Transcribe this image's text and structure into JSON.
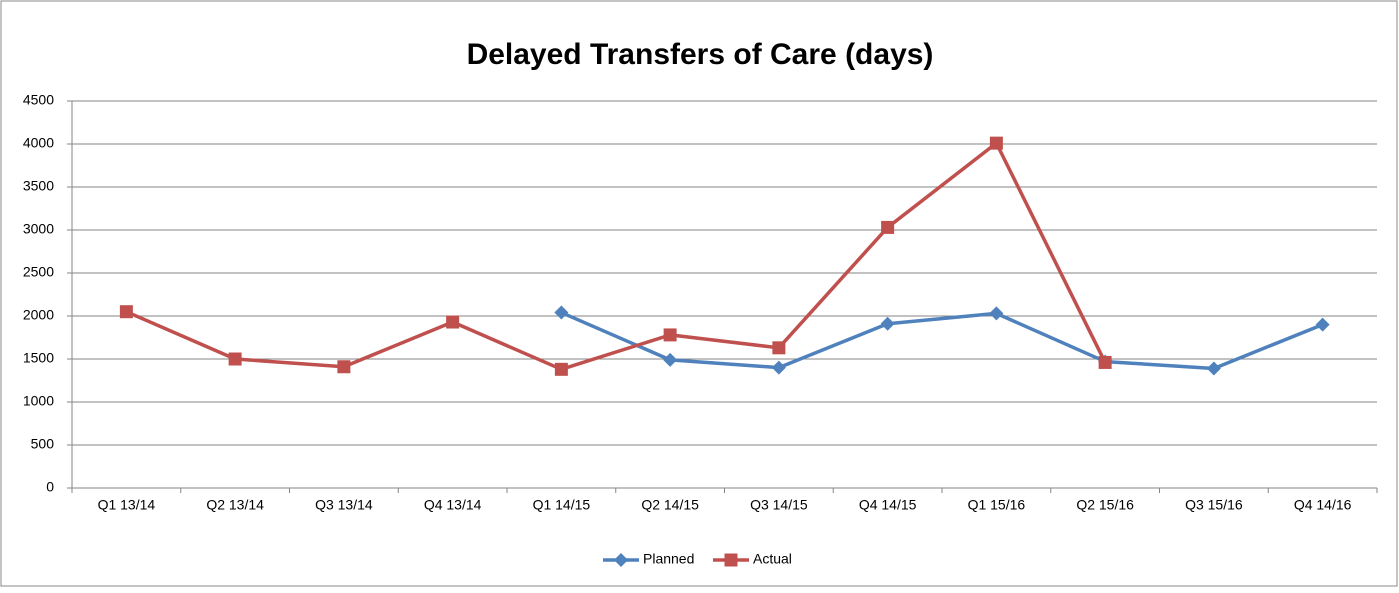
{
  "chart_data": {
    "type": "line",
    "title": "Delayed Transfers of Care (days)",
    "categories": [
      "Q1 13/14",
      "Q2 13/14",
      "Q3 13/14",
      "Q4 13/14",
      "Q1 14/15",
      "Q2 14/15",
      "Q3 14/15",
      "Q4 14/15",
      "Q1 15/16",
      "Q2 15/16",
      "Q3 15/16",
      "Q4 14/16"
    ],
    "series": [
      {
        "name": "Planned",
        "color": "#4f81bd",
        "marker": "diamond",
        "values": [
          null,
          null,
          null,
          null,
          2040,
          1490,
          1400,
          1910,
          2030,
          1470,
          1390,
          1900
        ]
      },
      {
        "name": "Actual",
        "color": "#c0504d",
        "marker": "square",
        "values": [
          2050,
          1500,
          1410,
          1930,
          1380,
          1780,
          1630,
          3030,
          4010,
          1460,
          null,
          null
        ]
      }
    ],
    "ylim": [
      0,
      4500
    ],
    "yticks": [
      0,
      500,
      1000,
      1500,
      2000,
      2500,
      3000,
      3500,
      4000,
      4500
    ],
    "grid": true,
    "legend": "bottom"
  }
}
